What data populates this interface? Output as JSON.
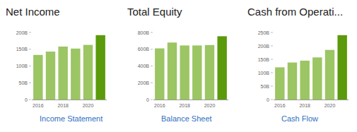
{
  "chart_data": [
    {
      "type": "bar",
      "title": "Net Income",
      "categories": [
        "2016",
        null,
        "2018",
        null,
        "2020",
        null
      ],
      "values": [
        133,
        143,
        158,
        152,
        163,
        192
      ],
      "colors": [
        "#9cc563",
        "#9cc563",
        "#9cc563",
        "#9cc563",
        "#9cc563",
        "#5b9a0a"
      ],
      "ylim": [
        0,
        200
      ],
      "yticks": [
        0,
        {
          "value": 50,
          "label": "50B"
        },
        {
          "value": 100,
          "label": "100B"
        },
        {
          "value": 150,
          "label": "150B"
        },
        {
          "value": 200,
          "label": "200B"
        }
      ],
      "grid": false,
      "link": "Income Statement"
    },
    {
      "type": "bar",
      "title": "Total Equity",
      "categories": [
        "2016",
        null,
        "2018",
        null,
        "2020",
        null
      ],
      "values": [
        610,
        680,
        645,
        645,
        650,
        755
      ],
      "colors": [
        "#9cc563",
        "#9cc563",
        "#9cc563",
        "#9cc563",
        "#9cc563",
        "#5b9a0a"
      ],
      "ylim": [
        0,
        800
      ],
      "yticks": [
        0,
        {
          "value": 200,
          "label": "200B"
        },
        {
          "value": 400,
          "label": "400B"
        },
        {
          "value": 600,
          "label": "600B"
        },
        {
          "value": 800,
          "label": "800B"
        }
      ],
      "grid": false,
      "link": "Balance Sheet"
    },
    {
      "type": "bar",
      "title": "Cash from Operati...",
      "categories": [
        "2016",
        null,
        "2018",
        null,
        "2020",
        null
      ],
      "values": [
        120,
        138,
        145,
        157,
        185,
        240
      ],
      "colors": [
        "#9cc563",
        "#9cc563",
        "#9cc563",
        "#9cc563",
        "#9cc563",
        "#5b9a0a"
      ],
      "ylim": [
        0,
        250
      ],
      "yticks": [
        0,
        {
          "value": 50,
          "label": "50B"
        },
        {
          "value": 100,
          "label": "100B"
        },
        {
          "value": 150,
          "label": "150B"
        },
        {
          "value": 200,
          "label": "200B"
        },
        {
          "value": 250,
          "label": "250B"
        }
      ],
      "grid": false,
      "link": "Cash Flow"
    }
  ]
}
